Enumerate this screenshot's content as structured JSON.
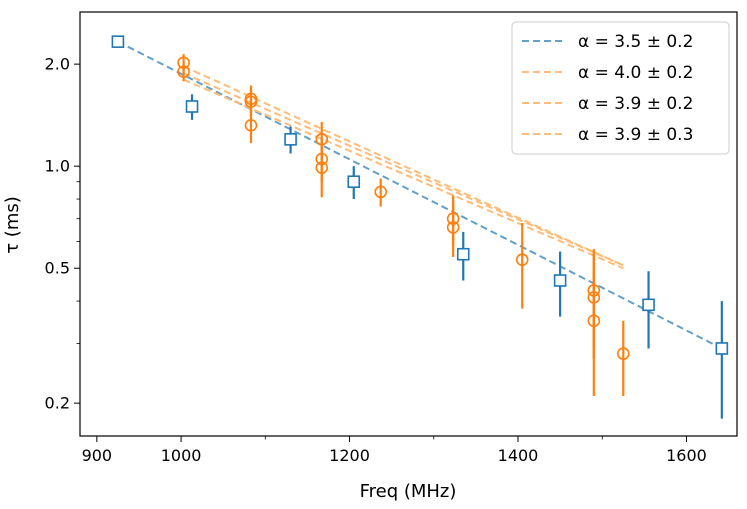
{
  "chart_data": {
    "type": "scatter",
    "xlabel": "Freq (MHz)",
    "ylabel": "τ (ms)",
    "xscale": "linear",
    "yscale": "log",
    "xlim": [
      880,
      1660
    ],
    "ylim": [
      0.16,
      2.85
    ],
    "xticks": [
      900,
      1000,
      1200,
      1400,
      1600
    ],
    "xtick_labels": [
      "900",
      "1000",
      "1200",
      "1400",
      "1600"
    ],
    "yticks": [
      0.2,
      0.5,
      1.0,
      2.0
    ],
    "ytick_labels": [
      "0.2",
      "0.5",
      "1.0",
      "2.0"
    ],
    "legend_position": "top-right",
    "series": [
      {
        "name": "blue-squares",
        "color": "#1f77b4",
        "marker": "square",
        "points": [
          {
            "x": 925,
            "y": 2.33,
            "err": 0.0
          },
          {
            "x": 1013,
            "y": 1.5,
            "err": 0.13
          },
          {
            "x": 1130,
            "y": 1.2,
            "err": 0.11
          },
          {
            "x": 1205,
            "y": 0.9,
            "err": 0.1
          },
          {
            "x": 1335,
            "y": 0.55,
            "err": 0.09
          },
          {
            "x": 1450,
            "y": 0.46,
            "err": 0.1
          },
          {
            "x": 1555,
            "y": 0.39,
            "err": 0.1
          },
          {
            "x": 1642,
            "y": 0.29,
            "err": 0.11
          }
        ]
      },
      {
        "name": "orange-circles",
        "color": "#ff7f0e",
        "marker": "circle",
        "points": [
          {
            "x": 1003,
            "y": 2.02,
            "err": 0.12
          },
          {
            "x": 1003,
            "y": 1.9,
            "err": 0.12
          },
          {
            "x": 1083,
            "y": 1.58,
            "err": 0.15
          },
          {
            "x": 1083,
            "y": 1.55,
            "err": 0.15
          },
          {
            "x": 1083,
            "y": 1.32,
            "err": 0.15
          },
          {
            "x": 1167,
            "y": 1.2,
            "err": 0.15
          },
          {
            "x": 1167,
            "y": 1.05,
            "err": 0.15
          },
          {
            "x": 1167,
            "y": 0.99,
            "err": 0.18
          },
          {
            "x": 1237,
            "y": 0.84,
            "err": 0.08
          },
          {
            "x": 1323,
            "y": 0.7,
            "err": 0.12
          },
          {
            "x": 1323,
            "y": 0.66,
            "err": 0.12
          },
          {
            "x": 1405,
            "y": 0.53,
            "err": 0.15
          },
          {
            "x": 1490,
            "y": 0.43,
            "err": 0.14
          },
          {
            "x": 1490,
            "y": 0.41,
            "err": 0.14
          },
          {
            "x": 1490,
            "y": 0.35,
            "err": 0.14
          },
          {
            "x": 1525,
            "y": 0.28,
            "err": 0.07
          }
        ]
      }
    ],
    "fits": [
      {
        "label": "α = 3.5 ± 0.2",
        "color": "#1f77b4",
        "opacity": 0.7,
        "x_range": [
          925,
          1642
        ],
        "y_range": [
          2.33,
          0.29
        ]
      },
      {
        "label": "α = 4.0 ± 0.2",
        "color": "#ffbb78",
        "opacity": 1.0,
        "x_range": [
          1003,
          1525
        ],
        "y_range": [
          1.97,
          0.51
        ]
      },
      {
        "label": "α = 3.9 ± 0.2",
        "color": "#ffbb78",
        "opacity": 1.0,
        "x_range": [
          1003,
          1525
        ],
        "y_range": [
          1.88,
          0.51
        ]
      },
      {
        "label": "α = 3.9 ± 0.3",
        "color": "#ffbb78",
        "opacity": 1.0,
        "x_range": [
          1003,
          1525
        ],
        "y_range": [
          1.8,
          0.5
        ]
      }
    ]
  }
}
